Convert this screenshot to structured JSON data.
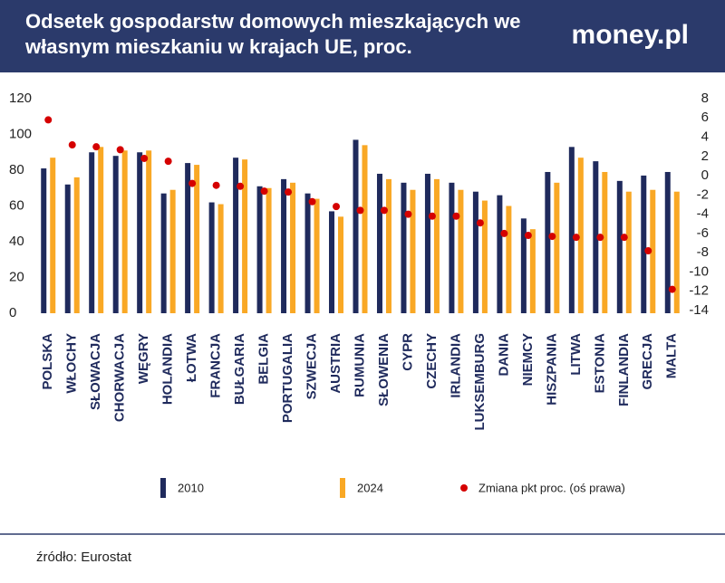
{
  "header": {
    "logo": "money.pl"
  },
  "chart_data": {
    "type": "bar",
    "title": "Odsetek gospodarstw domowych mieszkających we własnym mieszkaniu w krajach UE, proc.",
    "source": "źródło: Eurostat",
    "categories": [
      "POLSKA",
      "WŁOCHY",
      "SŁOWACJA",
      "CHORWACJA",
      "WĘGRY",
      "HOLANDIA",
      "ŁOTWA",
      "FRANCJA",
      "BUŁGARIA",
      "BELGIA",
      "PORTUGALIA",
      "SZWECJA",
      "AUSTRIA",
      "RUMUNIA",
      "SŁOWENIA",
      "CYPR",
      "CZECHY",
      "IRLANDIA",
      "LUKSEMBURG",
      "DANIA",
      "NIEMCY",
      "HISZPANIA",
      "LITWA",
      "ESTONIA",
      "FINLANDIA",
      "GRECJA",
      "MALTA"
    ],
    "series": [
      {
        "name": "2010",
        "type": "bar",
        "color": "#1f2a5c",
        "values": [
          81,
          72,
          90,
          88,
          90,
          67,
          84,
          62,
          87,
          71,
          75,
          67,
          57,
          97,
          78,
          73,
          78,
          73,
          68,
          66,
          53,
          79,
          93,
          85,
          74,
          77,
          79
        ]
      },
      {
        "name": "2024",
        "type": "bar",
        "color": "#f9a825",
        "values": [
          87,
          76,
          93,
          91,
          91,
          69,
          83,
          61,
          86,
          70,
          73,
          64,
          54,
          94,
          75,
          69,
          75,
          69,
          63,
          60,
          47,
          73,
          87,
          79,
          68,
          69,
          68
        ]
      },
      {
        "name": "Zmiana pkt proc. (oś prawa)",
        "type": "scatter",
        "axis": "y2",
        "color": "#d50000",
        "values": [
          5.8,
          3.2,
          3.0,
          2.7,
          1.8,
          1.5,
          -0.8,
          -1.0,
          -1.1,
          -1.6,
          -1.7,
          -2.7,
          -3.2,
          -3.6,
          -3.6,
          -4.0,
          -4.2,
          -4.2,
          -4.9,
          -6.0,
          -6.2,
          -6.3,
          -6.4,
          -6.4,
          -6.4,
          -7.8,
          -11.8
        ]
      }
    ],
    "ylim": [
      0,
      120
    ],
    "yticks": [
      0,
      20,
      40,
      60,
      80,
      100,
      120
    ],
    "y2lim": [
      -14,
      8
    ],
    "y2ticks": [
      -14,
      -12,
      -10,
      -8,
      -6,
      -4,
      -2,
      0,
      2,
      4,
      6,
      8
    ],
    "grid": false
  }
}
